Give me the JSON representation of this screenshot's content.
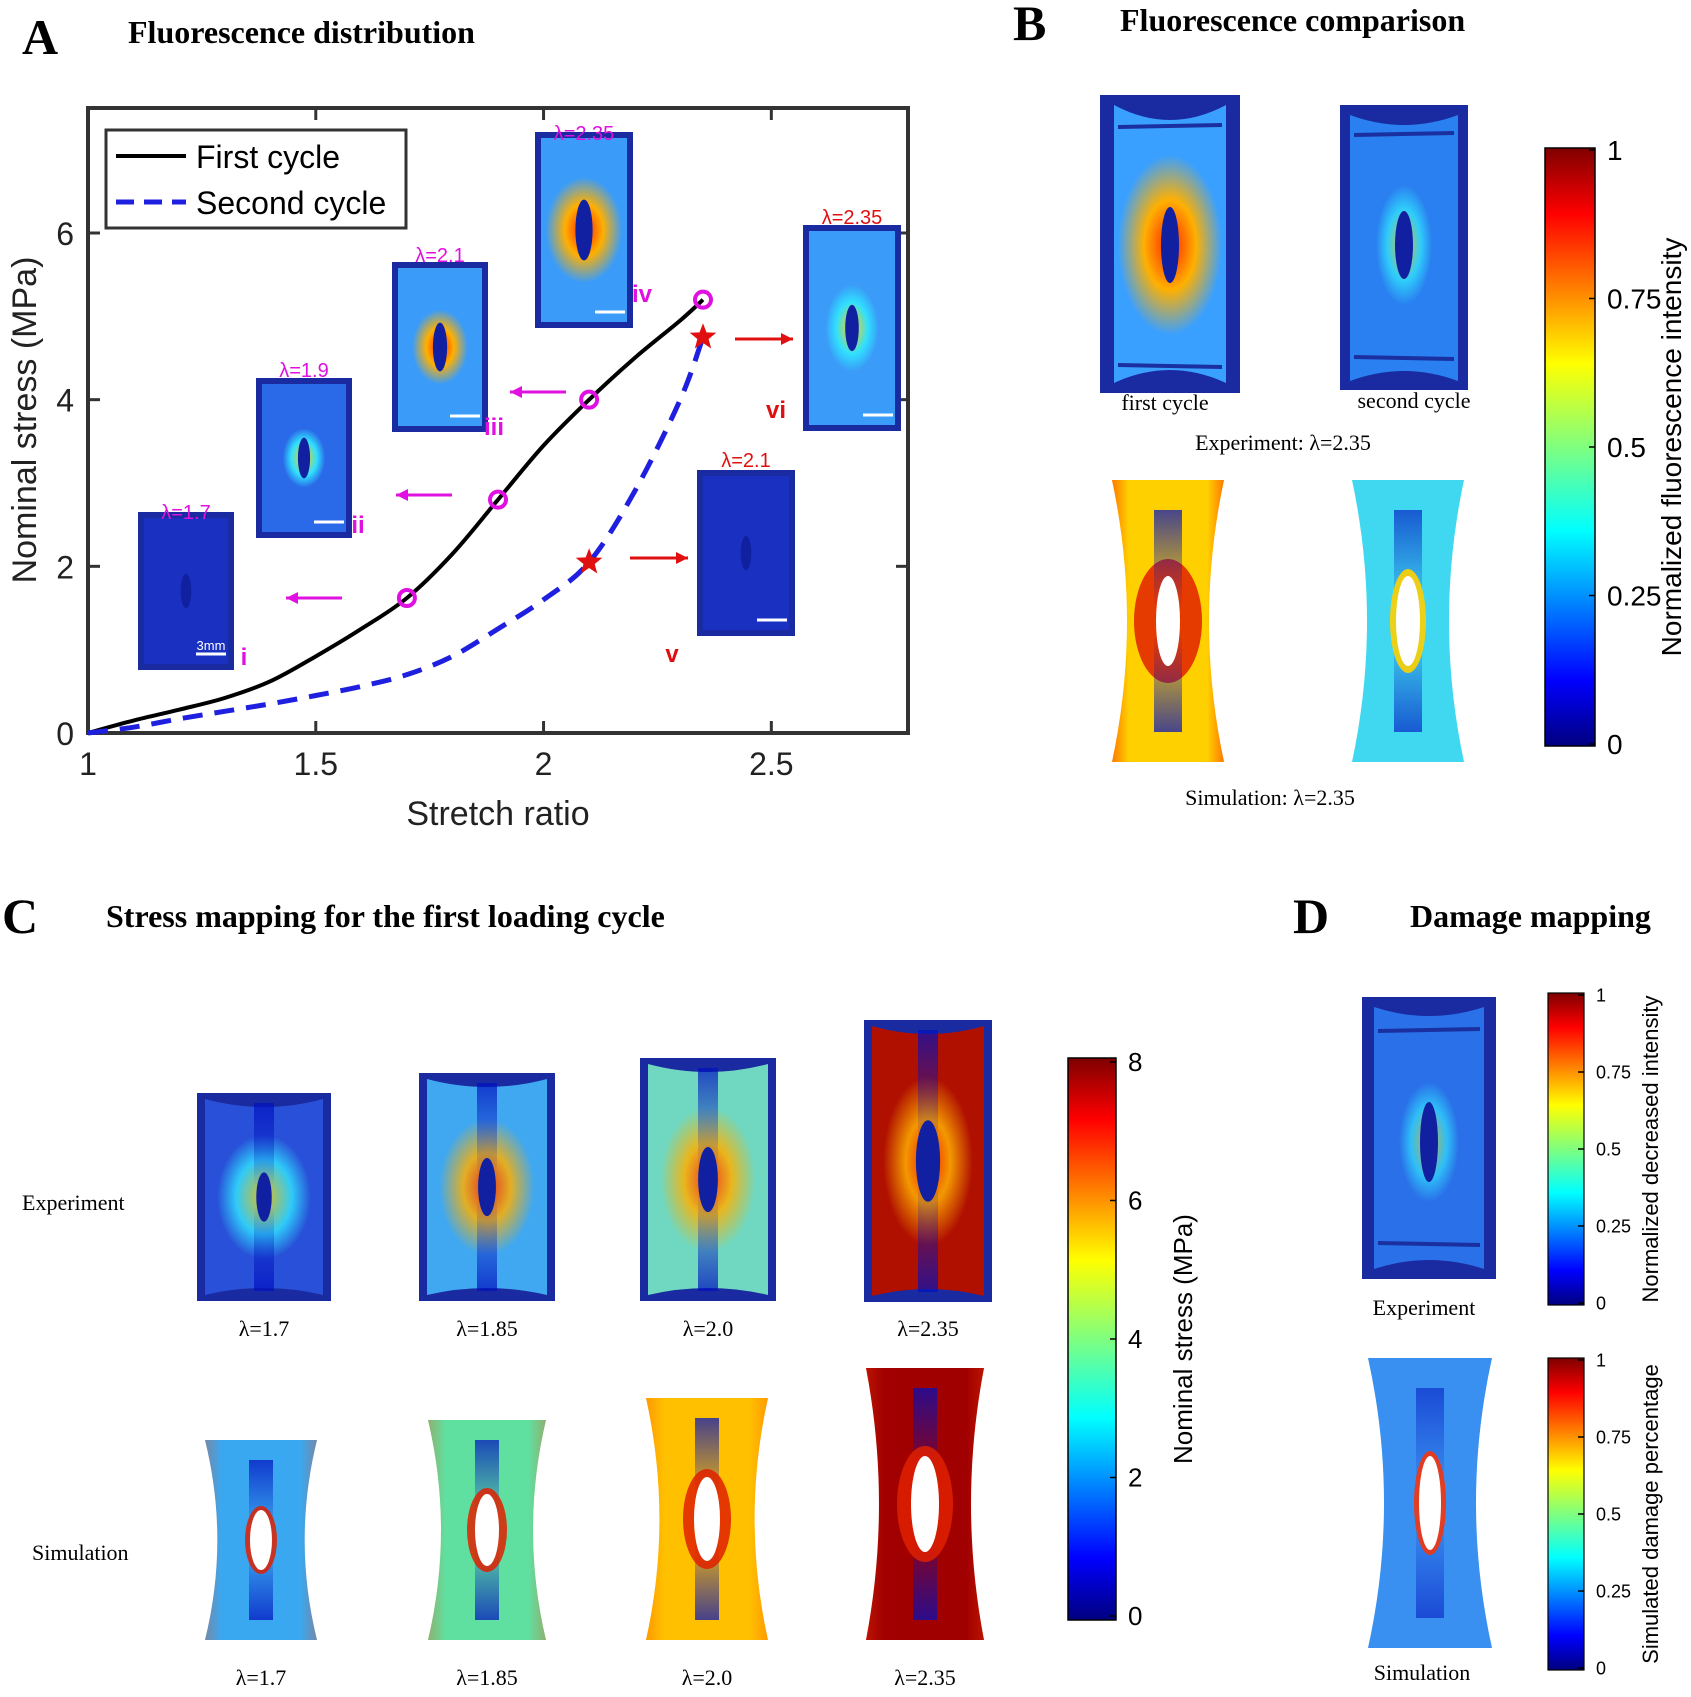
{
  "panels": {
    "A": {
      "letter": "A",
      "title": "Fluorescence distribution"
    },
    "B": {
      "letter": "B",
      "title": "Fluorescence comparison"
    },
    "C": {
      "letter": "C",
      "title": "Stress mapping for the first loading cycle"
    },
    "D": {
      "letter": "D",
      "title": "Damage mapping"
    }
  },
  "chart_data": {
    "type": "line",
    "xlabel": "Stretch ratio",
    "ylabel": "Nominal stress (MPa)",
    "xlim": [
      1,
      2.8
    ],
    "ylim": [
      0,
      7.5
    ],
    "xticks": [
      "1",
      "1.5",
      "2",
      "2.5"
    ],
    "yticks": [
      "0",
      "2",
      "4",
      "6"
    ],
    "legend_position": "top-left",
    "series": [
      {
        "name": "First cycle",
        "color": "#000000",
        "dash": "solid",
        "x": [
          1.0,
          1.1,
          1.2,
          1.3,
          1.4,
          1.5,
          1.6,
          1.7,
          1.8,
          1.9,
          2.0,
          2.1,
          2.2,
          2.3,
          2.35
        ],
        "y": [
          0.0,
          0.15,
          0.28,
          0.42,
          0.62,
          0.92,
          1.25,
          1.62,
          2.15,
          2.8,
          3.45,
          4.0,
          4.5,
          4.95,
          5.2
        ]
      },
      {
        "name": "Second cycle",
        "color": "#1f1fe0",
        "dash": "dashed",
        "x": [
          1.0,
          1.1,
          1.2,
          1.3,
          1.4,
          1.5,
          1.6,
          1.7,
          1.8,
          1.9,
          2.0,
          2.1,
          2.2,
          2.3,
          2.35
        ],
        "y": [
          0.0,
          0.07,
          0.17,
          0.26,
          0.35,
          0.45,
          0.56,
          0.7,
          0.92,
          1.25,
          1.6,
          2.05,
          2.9,
          4.0,
          4.75
        ]
      }
    ],
    "markers_first": {
      "x": [
        1.7,
        1.9,
        2.1,
        2.35
      ],
      "y": [
        1.62,
        2.8,
        4.0,
        5.2
      ],
      "color": "#e010e0"
    },
    "markers_second": {
      "x": [
        2.1,
        2.35
      ],
      "y": [
        2.05,
        4.75
      ],
      "color": "#e01010"
    },
    "insets": [
      {
        "roman": "i",
        "lambda": "λ=1.7",
        "color": "#e010e0",
        "scale": "3mm",
        "intensity": 0.05
      },
      {
        "roman": "ii",
        "lambda": "λ=1.9",
        "color": "#e010e0",
        "intensity": 0.18
      },
      {
        "roman": "iii",
        "lambda": "λ=2.1",
        "color": "#e010e0",
        "intensity": 0.35
      },
      {
        "roman": "iv",
        "lambda": "λ=2.35",
        "color": "#e010e0",
        "intensity": 0.6
      },
      {
        "roman": "v",
        "lambda": "λ=2.1",
        "color": "#e01010",
        "intensity": 0.05
      },
      {
        "roman": "vi",
        "lambda": "λ=2.35",
        "color": "#e01010",
        "intensity": 0.3
      }
    ]
  },
  "panelB": {
    "experiment_labels": [
      "first cycle",
      "second cycle"
    ],
    "experiment_caption": "Experiment: λ=2.35",
    "simulation_caption": "Simulation: λ=2.35",
    "colorbar": {
      "label": "Normalized fluorescence intensity",
      "ticks": [
        "1",
        "0.75",
        "0.5",
        "0.25",
        "0"
      ]
    }
  },
  "panelC": {
    "row_labels": [
      "Experiment",
      "Simulation"
    ],
    "lambdas": [
      "λ=1.7",
      "λ=1.85",
      "λ=2.0",
      "λ=2.35"
    ],
    "colorbar": {
      "label": "Nominal stress (MPa)",
      "ticks": [
        "8",
        "6",
        "4",
        "2",
        "0"
      ]
    }
  },
  "panelD": {
    "experiment_label": "Experiment",
    "simulation_label": "Simulation",
    "colorbar_top": {
      "label": "Normalized decreased intensity",
      "ticks": [
        "1",
        "0.75",
        "0.5",
        "0.25",
        "0"
      ]
    },
    "colorbar_bottom": {
      "label": "Simulated damage percentage",
      "ticks": [
        "1",
        "0.75",
        "0.5",
        "0.25",
        "0"
      ]
    }
  }
}
